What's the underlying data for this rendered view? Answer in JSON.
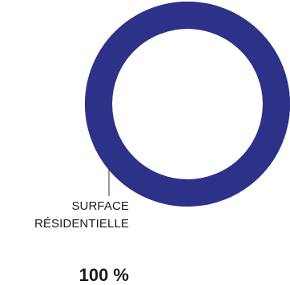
{
  "chart_data": {
    "type": "pie",
    "style": "donut",
    "slices": [
      {
        "label_line1": "SURFACE",
        "label_line2": "RÉSIDENTIELLE",
        "percent_text": "100 %",
        "value": 100,
        "color": "#2e3188"
      }
    ],
    "legend": "none"
  }
}
